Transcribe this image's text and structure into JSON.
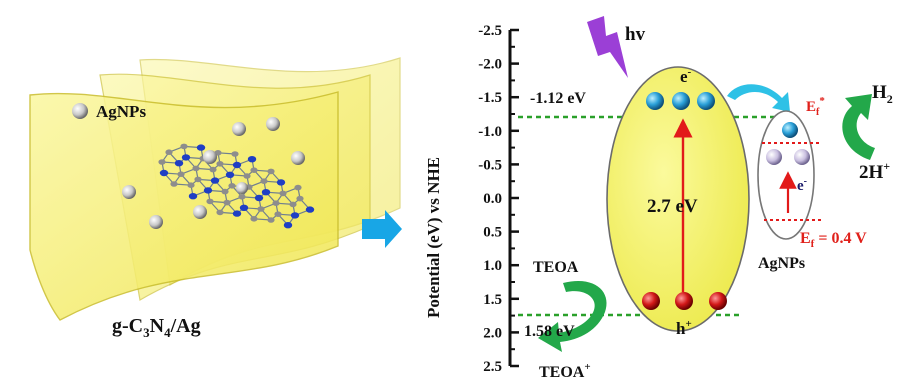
{
  "left_panel": {
    "legend_label": "AgNPs",
    "caption": {
      "main": "g-C",
      "sub1": "3",
      "mid": "N",
      "sub2": "4",
      "tail": "/Ag"
    }
  },
  "axis": {
    "label": "Potential (eV) vs NHE",
    "ticks": [
      "-2.5",
      "-2.0",
      "-1.5",
      "-1.0",
      "-0.5",
      "0.0",
      "0.5",
      "1.0",
      "1.5",
      "2.0",
      "2.5"
    ],
    "values": [
      -2.5,
      -2.0,
      -1.5,
      -1.0,
      -0.5,
      0.0,
      0.5,
      1.0,
      1.5,
      2.0,
      2.5
    ]
  },
  "energy": {
    "cb_label": "-1.12 eV",
    "cb_value": -1.12,
    "vb_label": "1.58 eV",
    "vb_value": 1.58,
    "gap_label": "2.7 eV"
  },
  "light": {
    "label": "hv"
  },
  "carriers": {
    "electron": "e",
    "electron_sup": "-",
    "hole": "h",
    "hole_sup": "+"
  },
  "agnps": {
    "label": "AgNPs",
    "ef_star_main": "E",
    "ef_star_sub": "f",
    "ef_star_sup": "*",
    "ef_main": "E",
    "ef_sub": "f",
    "ef_tail": " = 0.4 V",
    "electron_main": "e",
    "electron_sup": "-"
  },
  "reaction_h2": {
    "product_main": "H",
    "product_sub": "2",
    "reactant": "2H",
    "reactant_sup": "+"
  },
  "reaction_teoa": {
    "reactant": "TEOA",
    "product": "TEOA",
    "product_sup": "+"
  },
  "colors": {
    "sheet_yellow": "#f4ee6a",
    "ellipse_yellow": "#f2f065",
    "dashed_green": "#2aa02a",
    "arrow_red": "#e21a1a",
    "arrow_green": "#23a84a",
    "arrow_cyan": "#2ec1e6",
    "bolt_purple": "#9b3fd6",
    "label_red": "#e0201a",
    "electron_blue": "#2aa0d8",
    "hole_red": "#d21818"
  }
}
